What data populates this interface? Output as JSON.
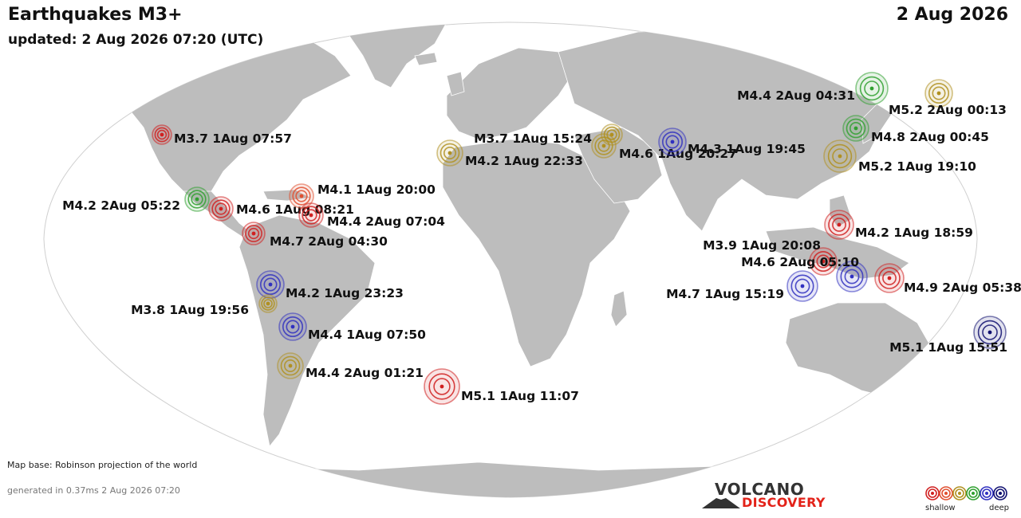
{
  "header": {
    "title": "Earthquakes M3+",
    "updated": "updated:  2 Aug 2026 07:20 (UTC)",
    "date": "2 Aug 2026"
  },
  "footer": {
    "map_base": "Map base: Robinson projection of the world",
    "generated": "generated in 0.37ms 2 Aug 2026 07:20"
  },
  "logo": {
    "top": "VOLCANO",
    "bottom": "DISCOVERY"
  },
  "legend": {
    "shallow": "shallow",
    "deep": "deep",
    "colors": [
      "#d02020",
      "#e05030",
      "#b09020",
      "#30a030",
      "#3030c0",
      "#101070"
    ]
  },
  "colors": {
    "land": "#bdbdbd",
    "ocean": "#ffffff",
    "shallow": "#d02020",
    "mid_shallow": "#e05030",
    "intermediate": "#b09020",
    "mid": "#30a030",
    "deep": "#3030c0",
    "very_deep": "#101070"
  },
  "quakes": [
    {
      "label": "M3.7 1Aug 07:57",
      "depth": "shallow"
    },
    {
      "label": "M4.2 2Aug 05:22",
      "depth": "mid"
    },
    {
      "label": "M4.6 1Aug 08:21",
      "depth": "shallow"
    },
    {
      "label": "M4.1 1Aug 20:00",
      "depth": "mid_shallow"
    },
    {
      "label": "M4.4 2Aug 07:04",
      "depth": "shallow"
    },
    {
      "label": "M4.7 2Aug 04:30",
      "depth": "shallow"
    },
    {
      "label": "M4.2 1Aug 23:23",
      "depth": "deep"
    },
    {
      "label": "M3.8 1Aug 19:56",
      "depth": "intermediate"
    },
    {
      "label": "M4.4 1Aug 07:50",
      "depth": "deep"
    },
    {
      "label": "M4.4 2Aug 01:21",
      "depth": "intermediate"
    },
    {
      "label": "M5.1 1Aug 11:07",
      "depth": "shallow"
    },
    {
      "label": "M4.2 1Aug 22:33",
      "depth": "intermediate"
    },
    {
      "label": "M3.7 1Aug 15:24",
      "depth": "intermediate"
    },
    {
      "label": "M4.6 1Aug 20:27",
      "depth": "intermediate"
    },
    {
      "label": "M4.3 1Aug 19:45",
      "depth": "deep"
    },
    {
      "label": "M4.4 2Aug 04:31",
      "depth": "mid"
    },
    {
      "label": "M5.2 2Aug 00:13",
      "depth": "intermediate"
    },
    {
      "label": "M4.8 2Aug 00:45",
      "depth": "mid"
    },
    {
      "label": "M5.2 1Aug 19:10",
      "depth": "intermediate"
    },
    {
      "label": "M4.2 1Aug 18:59",
      "depth": "shallow"
    },
    {
      "label": "M3.9 1Aug 20:08",
      "depth": "shallow"
    },
    {
      "label": "M4.6 2Aug 05:10",
      "depth": "deep"
    },
    {
      "label": "M4.7 1Aug 15:19",
      "depth": "deep"
    },
    {
      "label": "M4.9 2Aug 05:38",
      "depth": "shallow"
    },
    {
      "label": "M5.1 1Aug 15:51",
      "depth": "very_deep"
    }
  ]
}
